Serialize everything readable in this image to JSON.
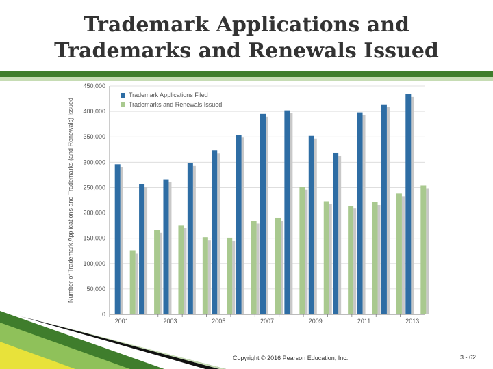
{
  "slide": {
    "title": "Trademark Applications and\nTrademarks and Renewals Issued",
    "footer": "Copyright © 2016 Pearson Education, Inc.",
    "page_number": "3 - 62"
  },
  "colors": {
    "rule_dark": "#3f7d2c",
    "rule_light": "#c6dcb4",
    "series_1": "#2e6da4",
    "series_2": "#a9c98f",
    "shadow": "#c8c8c8"
  },
  "chart_data": {
    "type": "bar",
    "ylabel": "Number of Trademark Applications and Trademarks (and Renewals) Issued",
    "ylim": [
      0,
      450000
    ],
    "yticks": [
      "0",
      "50,000",
      "100,000",
      "150,000",
      "200,000",
      "250,000",
      "300,000",
      "350,000",
      "400,000",
      "450,000"
    ],
    "categories": [
      "2001",
      "2002",
      "2003",
      "2004",
      "2005",
      "2006",
      "2007",
      "2008",
      "2009",
      "2010",
      "2011",
      "2012",
      "2013"
    ],
    "xtick_labels": [
      "2001",
      "",
      "2003",
      "",
      "2005",
      "",
      "2007",
      "",
      "2009",
      "",
      "2011",
      "",
      "2013"
    ],
    "legend_position": "top-left",
    "series": [
      {
        "name": "Trademark Applications Filed",
        "values": [
          296000,
          257000,
          266000,
          298000,
          323000,
          354000,
          395000,
          402000,
          352000,
          318000,
          398000,
          414000,
          434000
        ]
      },
      {
        "name": "Trademarks and Renewals Issued",
        "values": [
          126000,
          166000,
          176000,
          152000,
          151000,
          184000,
          190000,
          251000,
          223000,
          214000,
          221000,
          238000,
          254000
        ]
      }
    ]
  }
}
